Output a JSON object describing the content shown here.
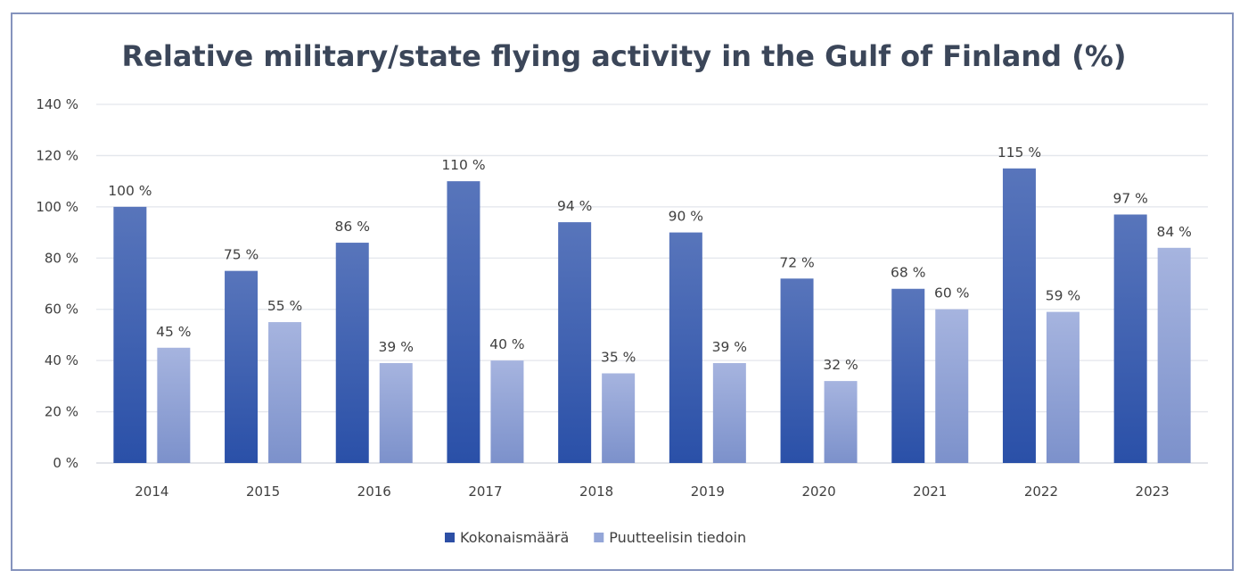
{
  "chart_data": {
    "type": "bar",
    "title": "Relative military/state  flying activity in the Gulf of Finland (%)",
    "categories": [
      "2014",
      "2015",
      "2016",
      "2017",
      "2018",
      "2019",
      "2020",
      "2021",
      "2022",
      "2023"
    ],
    "series": [
      {
        "name": "Kokonaismäärä",
        "values": [
          100,
          75,
          86,
          110,
          94,
          90,
          72,
          68,
          115,
          97
        ],
        "color": "#3d5fb0"
      },
      {
        "name": "Puutteelisin tiedoin",
        "values": [
          45,
          55,
          39,
          40,
          35,
          39,
          32,
          60,
          59,
          84
        ],
        "color": "#94a6d8"
      }
    ],
    "ylim": [
      0,
      140
    ],
    "yticks": [
      0,
      20,
      40,
      60,
      80,
      100,
      120,
      140
    ],
    "tick_suffix": " %",
    "grid": true,
    "legend": "bottom",
    "xlabel": "",
    "ylabel": ""
  }
}
